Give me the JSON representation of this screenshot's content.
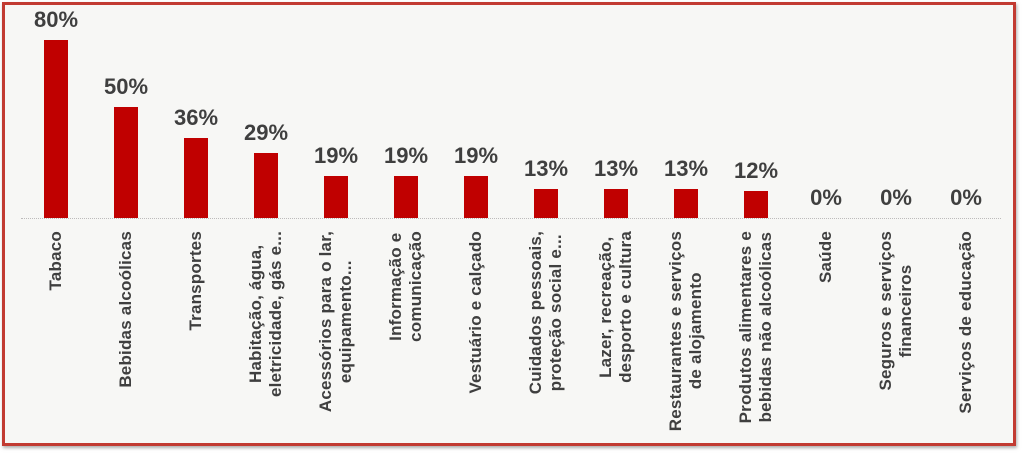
{
  "chart_data": {
    "type": "bar",
    "title": "",
    "xlabel": "",
    "ylabel": "",
    "categories": [
      "Tabaco",
      "Bebidas alcoólicas",
      "Transportes",
      "Habitação, água,\neletricidade, gás e...",
      "Acessórios para o lar,\nequipamento...",
      "Informação e\ncomunicação",
      "Vestuário e calçado",
      "Cuidados pessoais,\nproteção social e...",
      "Lazer, recreação,\ndesporto e cultura",
      "Restaurantes e serviços\nde alojamento",
      "Produtos alimentares e\nbebidas não alcoólicas",
      "Saúde",
      "Seguros e serviços\nfinanceiros",
      "Serviços de educação"
    ],
    "values": [
      80,
      50,
      36,
      29,
      19,
      19,
      19,
      13,
      13,
      13,
      12,
      0,
      0,
      0
    ],
    "value_labels": [
      "80%",
      "50%",
      "36%",
      "29%",
      "19%",
      "19%",
      "19%",
      "13%",
      "13%",
      "13%",
      "12%",
      "0%",
      "0%",
      "0%"
    ],
    "value_suffix": "%",
    "ylim": [
      0,
      88
    ],
    "grid": false,
    "legend": false,
    "colors": {
      "bar": "#c00000",
      "value_label": "#3f3f3f",
      "category_label": "#3f3f3f",
      "frame_border": "#c23b32",
      "background": "#f7f7f5",
      "axis_line": "#bdbbbb"
    }
  }
}
